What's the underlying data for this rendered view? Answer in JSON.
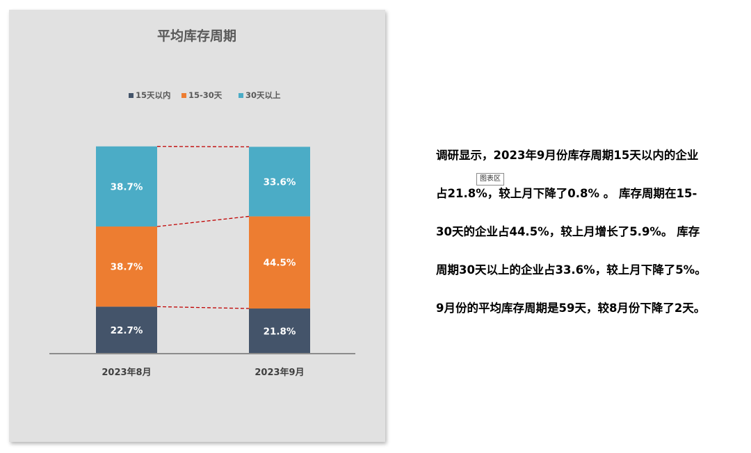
{
  "chart_data": {
    "type": "bar",
    "stacked": true,
    "percent": true,
    "title": "平均库存周期",
    "categories": [
      "2023年8月",
      "2023年9月"
    ],
    "series": [
      {
        "name": "15天以内",
        "values": [
          22.7,
          21.8
        ],
        "labels": [
          "22.7%",
          "21.8%"
        ],
        "color": "#44546a"
      },
      {
        "name": "15-30天",
        "values": [
          38.7,
          44.5
        ],
        "labels": [
          "38.7%",
          "44.5%"
        ],
        "color": "#ed7d31"
      },
      {
        "name": "30天以上",
        "values": [
          38.7,
          33.6
        ],
        "labels": [
          "38.7%",
          "33.6%"
        ],
        "color": "#4bacc6"
      }
    ],
    "ylim": [
      0,
      100
    ],
    "legend_position": "top",
    "series_lines": true,
    "series_line_color": "#c00000",
    "label_color": "#ffffff",
    "background": "#e1e1e1"
  },
  "tooltip_text": "图表区",
  "summary_lines": [
    "调研显示，2023年9月份库存周期15天以内的企业",
    "占21.8%，较上月下降了0.8% 。 库存周期在15-",
    "30天的企业占44.5%，较上月增长了5.9%。 库存",
    "周期30天以上的企业占33.6%，较上月下降了5%。",
    "9月份的平均库存周期是59天，较8月份下降了2天。"
  ]
}
